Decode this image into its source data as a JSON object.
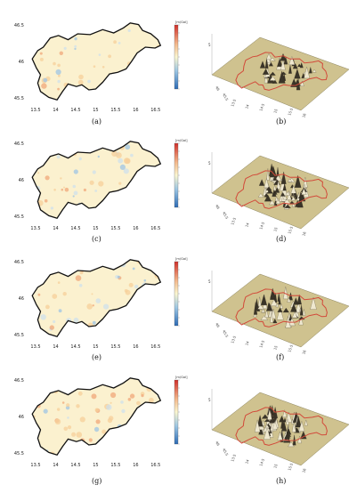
{
  "colors": {
    "map_fill": "#fbf1cf",
    "border": "#111111",
    "surface_fill": "#cfc28f",
    "surface_border": "#d24a3a",
    "cb_top": "#cf2f2a",
    "cb_mid": "#fbf6d0",
    "cb_bottom": "#2c6bb5"
  },
  "map_axis": {
    "x_ticks": [
      "13.5",
      "14",
      "14.5",
      "15",
      "15.5",
      "16",
      "16.5"
    ],
    "y_ticks": [
      "46.5",
      "46",
      "45.5"
    ]
  },
  "surface_axis": {
    "y_ticks": [
      "46",
      "45.5"
    ],
    "x_ticks": [
      "13.5",
      "14",
      "14.5",
      "15",
      "15.5",
      "16"
    ],
    "z_tick": "5"
  },
  "colorbar_unit": "[m/Gal]",
  "rows": [
    {
      "map_label": "(a)",
      "surface_label": "(b)"
    },
    {
      "map_label": "(c)",
      "surface_label": "(d)"
    },
    {
      "map_label": "(e)",
      "surface_label": "(f)"
    },
    {
      "map_label": "(g)",
      "surface_label": "(h)"
    }
  ]
}
